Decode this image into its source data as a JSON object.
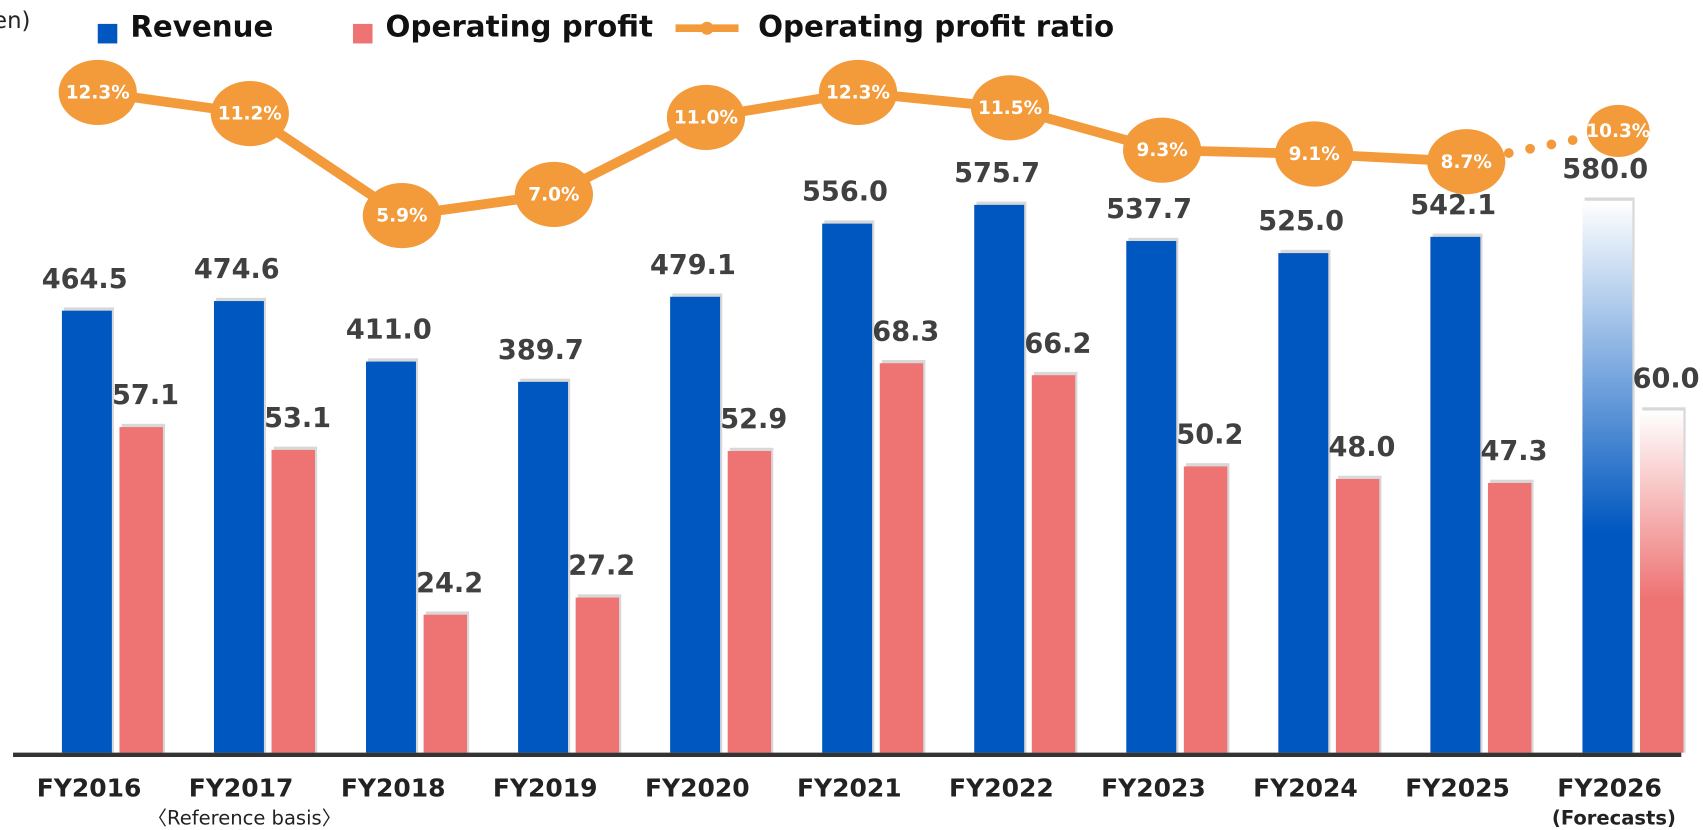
{
  "chart_data": {
    "type": "bar_line",
    "unit_label": "en)",
    "categories": [
      "FY2016",
      "FY2017",
      "FY2018",
      "FY2019",
      "FY2020",
      "FY2021",
      "FY2022",
      "FY2023",
      "FY2024",
      "FY2025",
      "FY2026"
    ],
    "category_notes": [
      null,
      "〈Reference basis〉",
      null,
      null,
      null,
      null,
      null,
      null,
      null,
      null,
      "(Forecasts)"
    ],
    "ylim": [
      0,
      791
    ],
    "y2lim": [
      0,
      132
    ],
    "y3lim": [
      -22,
      17.1
    ],
    "series": [
      {
        "name": "Revenue",
        "type": "bar",
        "color": "#0057c0",
        "values": [
          464.5,
          474.6,
          411.0,
          389.7,
          479.1,
          556.0,
          575.7,
          537.7,
          525.0,
          542.1,
          580.0
        ],
        "value_labels": [
          "464.5",
          "474.6",
          "411.0",
          "389.7",
          "479.1",
          "556.0",
          "575.7",
          "537.7",
          "525.0",
          "542.1",
          "580.0"
        ]
      },
      {
        "name": "Operating profit",
        "type": "bar",
        "axis": "y2",
        "color": "#ee7373",
        "values": [
          57.1,
          53.1,
          24.2,
          27.2,
          52.9,
          68.3,
          66.2,
          50.2,
          48.0,
          47.3,
          60.0
        ],
        "value_labels": [
          "57.1",
          "53.1",
          "24.2",
          "27.2",
          "52.9",
          "68.3",
          "66.2",
          "50.2",
          "48.0",
          "47.3",
          "60.0"
        ]
      },
      {
        "name": "Operating profit ratio",
        "type": "line",
        "axis": "y3",
        "color": "#f39a3a",
        "values": [
          12.3,
          11.2,
          5.9,
          7.0,
          11.0,
          12.3,
          11.5,
          9.3,
          9.1,
          8.7,
          10.3
        ],
        "value_labels": [
          "12.3%",
          "11.2%",
          "5.9%",
          "7.0%",
          "11.0%",
          "12.3%",
          "11.5%",
          "9.3%",
          "9.1%",
          "8.7%",
          "10.3%"
        ]
      }
    ]
  }
}
